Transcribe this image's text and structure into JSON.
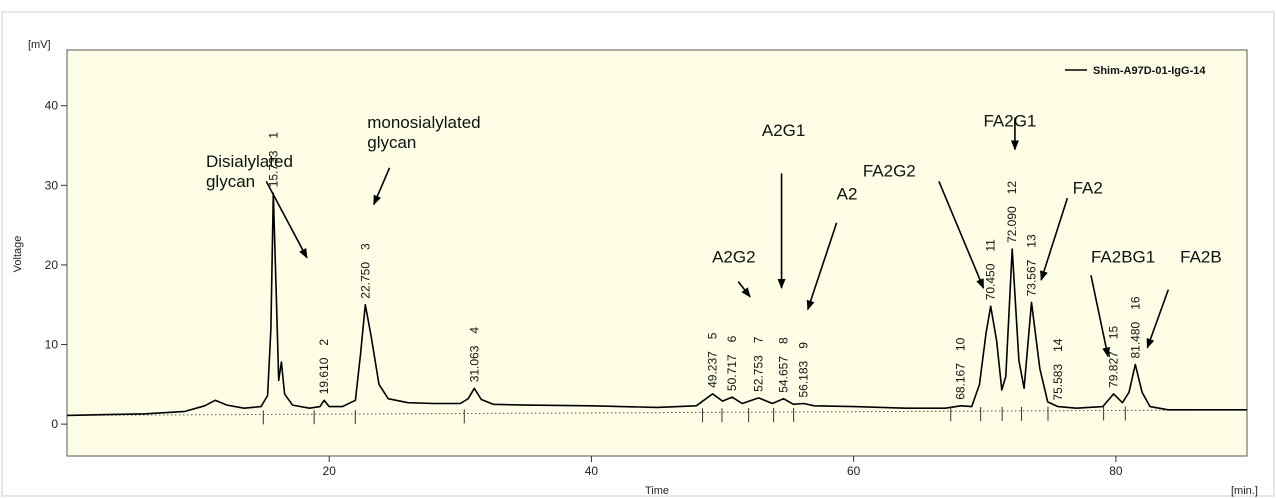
{
  "chart_data": {
    "type": "line",
    "y_unit": "[mV]",
    "x_unit": "[min.]",
    "xlabel": "Time",
    "ylabel": "Voltage",
    "xlim": [
      0,
      90
    ],
    "ylim": [
      -4,
      47
    ],
    "x_ticks": [
      20,
      40,
      60,
      80
    ],
    "y_ticks": [
      0,
      10,
      20,
      30,
      40
    ],
    "grid": false,
    "legend": {
      "position": "top-right",
      "entries": [
        "Shim-A97D-01-IgG-14"
      ]
    },
    "colors": {
      "plot_bg": "#fefee6",
      "trace": "#000000",
      "baseline": "#555555"
    },
    "baseline": {
      "x": [
        0,
        90
      ],
      "y": [
        1.1,
        1.8
      ]
    },
    "series": [
      {
        "name": "Shim-A97D-01-IgG-14",
        "x": [
          0,
          3,
          6,
          9,
          10.5,
          11.3,
          12.2,
          13.5,
          14.8,
          15.3,
          15.55,
          15.733,
          15.95,
          16.15,
          16.35,
          16.6,
          17.2,
          18.5,
          19.3,
          19.61,
          20,
          21,
          22,
          22.4,
          22.75,
          23.2,
          23.8,
          24.5,
          26,
          28,
          30,
          30.6,
          31.063,
          31.6,
          32.5,
          35,
          40,
          45,
          48,
          49.237,
          50,
          50.717,
          51.5,
          52.753,
          53.8,
          54.657,
          55.4,
          56.183,
          57,
          60,
          64,
          67,
          68.167,
          69,
          69.6,
          70.1,
          70.45,
          70.9,
          71.3,
          71.6,
          72.09,
          72.6,
          73.0,
          73.567,
          74.2,
          74.8,
          75.583,
          77,
          79,
          79.827,
          80.5,
          81.0,
          81.48,
          82.0,
          82.6,
          84,
          87,
          90
        ],
        "y": [
          1.1,
          1.2,
          1.3,
          1.6,
          2.3,
          3.0,
          2.4,
          2.0,
          2.2,
          3.6,
          12,
          29.0,
          17,
          5.5,
          7.8,
          3.8,
          2.4,
          2.0,
          2.2,
          3.0,
          2.2,
          2.2,
          3.0,
          9.0,
          15.0,
          11.0,
          5.0,
          3.2,
          2.7,
          2.6,
          2.6,
          3.2,
          4.5,
          3.1,
          2.5,
          2.4,
          2.3,
          2.1,
          2.3,
          3.8,
          2.9,
          3.4,
          2.6,
          3.3,
          2.6,
          3.2,
          2.5,
          2.6,
          2.3,
          2.2,
          2.0,
          2.0,
          2.3,
          2.2,
          5.0,
          11.5,
          14.8,
          10.5,
          4.3,
          6.0,
          22.0,
          8.0,
          4.5,
          15.3,
          7.0,
          2.8,
          2.2,
          2.0,
          2.2,
          3.8,
          2.7,
          4.0,
          7.5,
          4.0,
          2.2,
          1.8,
          1.8,
          1.8
        ]
      }
    ],
    "peaks": [
      {
        "n": "1",
        "rt": "15.733",
        "x": 15.733,
        "y": 29.0
      },
      {
        "n": "2",
        "rt": "19.610",
        "x": 19.61,
        "y": 3.0
      },
      {
        "n": "3",
        "rt": "22.750",
        "x": 22.75,
        "y": 15.0
      },
      {
        "n": "4",
        "rt": "31.063",
        "x": 31.063,
        "y": 4.5
      },
      {
        "n": "5",
        "rt": "49.237",
        "x": 49.237,
        "y": 3.8
      },
      {
        "n": "6",
        "rt": "50.717",
        "x": 50.717,
        "y": 3.4
      },
      {
        "n": "7",
        "rt": "52.753",
        "x": 52.753,
        "y": 3.3
      },
      {
        "n": "8",
        "rt": "54.657",
        "x": 54.657,
        "y": 3.2
      },
      {
        "n": "9",
        "rt": "56.183",
        "x": 56.183,
        "y": 2.6
      },
      {
        "n": "10",
        "rt": "68.167",
        "x": 68.167,
        "y": 2.3
      },
      {
        "n": "11",
        "rt": "70.450",
        "x": 70.45,
        "y": 14.8
      },
      {
        "n": "12",
        "rt": "72.090",
        "x": 72.09,
        "y": 22.0
      },
      {
        "n": "13",
        "rt": "73.567",
        "x": 73.567,
        "y": 15.3
      },
      {
        "n": "14",
        "rt": "75.583",
        "x": 75.583,
        "y": 2.2
      },
      {
        "n": "15",
        "rt": "79.827",
        "x": 79.827,
        "y": 3.8
      },
      {
        "n": "16",
        "rt": "81.480",
        "x": 81.48,
        "y": 7.5
      }
    ],
    "annotations": [
      {
        "lines": [
          "Disialylated",
          "glycan"
        ],
        "text_at": [
          10.6,
          32.3
        ],
        "arrow_from": [
          15.2,
          30.5
        ],
        "arrow_to": [
          18.3,
          20.9
        ]
      },
      {
        "lines": [
          "monosialylated",
          "glycan"
        ],
        "text_at": [
          22.9,
          37.2
        ],
        "arrow_from": [
          24.6,
          32.2
        ],
        "arrow_to": [
          23.4,
          27.6
        ]
      },
      {
        "lines": [
          "A2G1"
        ],
        "text_at": [
          53.0,
          36.2
        ],
        "arrow_from": [
          54.5,
          31.5
        ],
        "arrow_to": [
          54.5,
          17.1
        ]
      },
      {
        "lines": [
          "A2"
        ],
        "text_at": [
          58.7,
          28.2
        ],
        "arrow_from": [
          58.7,
          25.3
        ],
        "arrow_to": [
          56.5,
          14.4
        ]
      },
      {
        "lines": [
          "A2G2"
        ],
        "text_at": [
          49.2,
          20.3
        ],
        "arrow_from": [
          51.2,
          17.9
        ],
        "arrow_to": [
          52.1,
          16.0
        ]
      },
      {
        "lines": [
          "FA2G2"
        ],
        "text_at": [
          60.7,
          31.1
        ],
        "arrow_from": [
          66.5,
          30.5
        ],
        "arrow_to": [
          69.9,
          17.1
        ]
      },
      {
        "lines": [
          "FA2G1"
        ],
        "text_at": [
          69.9,
          37.4
        ],
        "arrow_from": [
          72.3,
          38.5
        ],
        "arrow_to": [
          72.3,
          34.5
        ]
      },
      {
        "lines": [
          "FA2"
        ],
        "text_at": [
          76.7,
          29.0
        ],
        "arrow_from": [
          76.3,
          28.4
        ],
        "arrow_to": [
          74.3,
          18.1
        ]
      },
      {
        "lines": [
          "FA2BG1"
        ],
        "text_at": [
          78.1,
          20.3
        ],
        "arrow_from": [
          78.1,
          18.7
        ],
        "arrow_to": [
          79.4,
          8.5
        ]
      },
      {
        "lines": [
          "FA2B"
        ],
        "text_at": [
          84.9,
          20.3
        ],
        "arrow_from": [
          84.0,
          16.9
        ],
        "arrow_to": [
          82.4,
          9.6
        ]
      }
    ]
  }
}
